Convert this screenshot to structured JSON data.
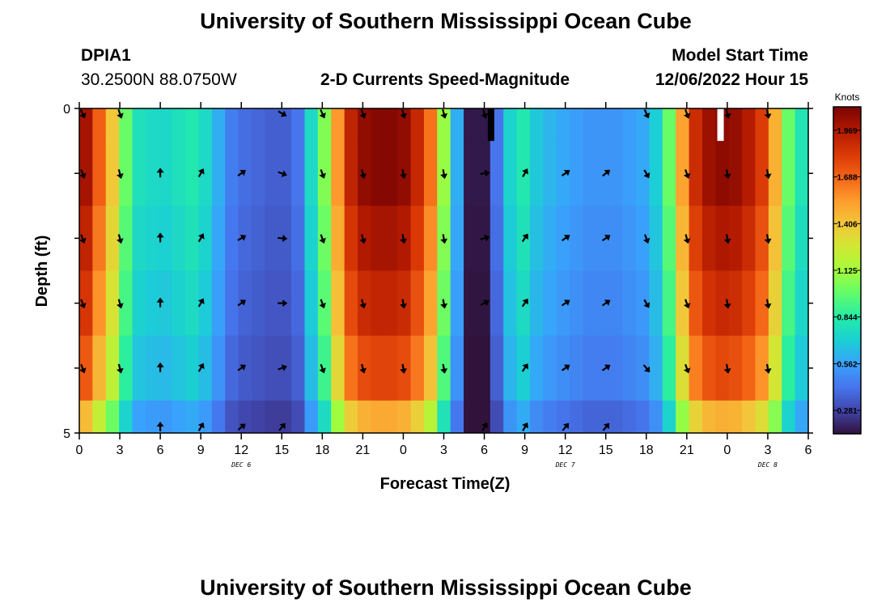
{
  "page": {
    "title": "University of Southern Mississippi Ocean Cube",
    "footer_title": "University of Southern Mississippi Ocean Cube",
    "station_name": "DPIA1",
    "station_coords": "30.2500N  88.0750W",
    "plot_title": "2-D Currents Speed-Magnitude",
    "model_start_label": "Model Start Time",
    "model_start_value": "12/06/2022 Hour 15"
  },
  "chart_data": {
    "type": "heatmap",
    "title": "2-D Currents Speed-Magnitude",
    "xlabel": "Forecast Time(Z)",
    "ylabel": "Depth (ft)",
    "x_tick_labels": [
      "0",
      "3",
      "6",
      "9",
      "12",
      "15",
      "18",
      "21",
      "0",
      "3",
      "6",
      "9",
      "12",
      "15",
      "18",
      "21",
      "0",
      "3",
      "6"
    ],
    "y_tick_labels": [
      "0",
      "5"
    ],
    "ylim": [
      0,
      5
    ],
    "date_labels": [
      {
        "label": "DEC 6",
        "hour": 12
      },
      {
        "label": "DEC 7",
        "hour": 36
      },
      {
        "label": "DEC 8",
        "hour": 51
      }
    ],
    "x_range_hours": [
      0,
      54
    ],
    "colorbar": {
      "title": "Knots",
      "ticks": [
        "0.281",
        "0.562",
        "0.844",
        "1.125",
        "1.406",
        "1.688",
        "1.969"
      ],
      "range": [
        0.14,
        2.11
      ],
      "colors": [
        "#30123b",
        "#4145ab",
        "#4675ed",
        "#39a2fc",
        "#1bcfd4",
        "#24eca6",
        "#61fc6c",
        "#a4fc3b",
        "#d1e834",
        "#f3c63a",
        "#fe9b2d",
        "#f36315",
        "#d93806",
        "#b11901",
        "#7a0402"
      ]
    },
    "time_hours": [
      0,
      1,
      2,
      3,
      4,
      5,
      6,
      7,
      8,
      9,
      10,
      11,
      12,
      13,
      14,
      15,
      16,
      17,
      18,
      19,
      20,
      21,
      22,
      23,
      24,
      25,
      26,
      27,
      28,
      29,
      30,
      31,
      32,
      33,
      34,
      35,
      36,
      37,
      38,
      39,
      40,
      41,
      42,
      43,
      44,
      45,
      46,
      47,
      48,
      49,
      50,
      51,
      52,
      53,
      54
    ],
    "depth_levels_ft": [
      0,
      1,
      2,
      3,
      4,
      5
    ],
    "speed_profile_knots": [
      2.0,
      1.7,
      1.4,
      1.0,
      0.78,
      0.75,
      0.74,
      0.78,
      0.82,
      0.75,
      0.6,
      0.45,
      0.4,
      0.38,
      0.36,
      0.36,
      0.42,
      0.75,
      1.05,
      1.55,
      1.92,
      2.05,
      2.08,
      2.08,
      2.05,
      1.9,
      1.65,
      1.1,
      0.6,
      0.16,
      0.16,
      0.42,
      0.72,
      0.82,
      0.68,
      0.62,
      0.58,
      0.55,
      0.52,
      0.52,
      0.52,
      0.55,
      0.58,
      0.7,
      1.0,
      1.52,
      1.88,
      2.02,
      2.06,
      2.04,
      1.96,
      1.82,
      1.48,
      1.0,
      0.8
    ],
    "depth_factors": [
      1.0,
      1.0,
      0.96,
      0.92,
      0.86,
      0.72
    ],
    "missing_cells": [
      {
        "hour": 30.5,
        "layer": 0,
        "color": "black"
      },
      {
        "hour": 47.5,
        "layer": 0,
        "color": "white"
      }
    ],
    "vectors": {
      "hours": [
        0,
        3,
        6,
        9,
        12,
        15,
        18,
        21,
        24,
        27,
        30,
        33,
        36,
        39,
        42,
        45,
        48,
        51,
        54
      ],
      "depths_ft": [
        0,
        1,
        2,
        3,
        4,
        5
      ],
      "directions_deg": [
        [
          155,
          160,
          null,
          null,
          null,
          120,
          155,
          160,
          165,
          165,
          165,
          null,
          null,
          null,
          155,
          160,
          165,
          170,
          null
        ],
        [
          160,
          165,
          0,
          30,
          55,
          110,
          160,
          165,
          170,
          170,
          80,
          30,
          55,
          50,
          150,
          160,
          170,
          170,
          null
        ],
        [
          160,
          165,
          0,
          30,
          60,
          95,
          160,
          165,
          170,
          170,
          75,
          35,
          55,
          55,
          160,
          165,
          170,
          170,
          null
        ],
        [
          160,
          165,
          0,
          30,
          55,
          90,
          160,
          165,
          170,
          170,
          60,
          35,
          55,
          55,
          150,
          160,
          170,
          170,
          null
        ],
        [
          160,
          165,
          0,
          30,
          55,
          70,
          160,
          165,
          170,
          170,
          null,
          35,
          55,
          55,
          140,
          160,
          170,
          170,
          null
        ],
        [
          null,
          null,
          0,
          30,
          50,
          40,
          null,
          null,
          null,
          null,
          30,
          30,
          40,
          40,
          null,
          null,
          null,
          null,
          null
        ]
      ]
    }
  }
}
